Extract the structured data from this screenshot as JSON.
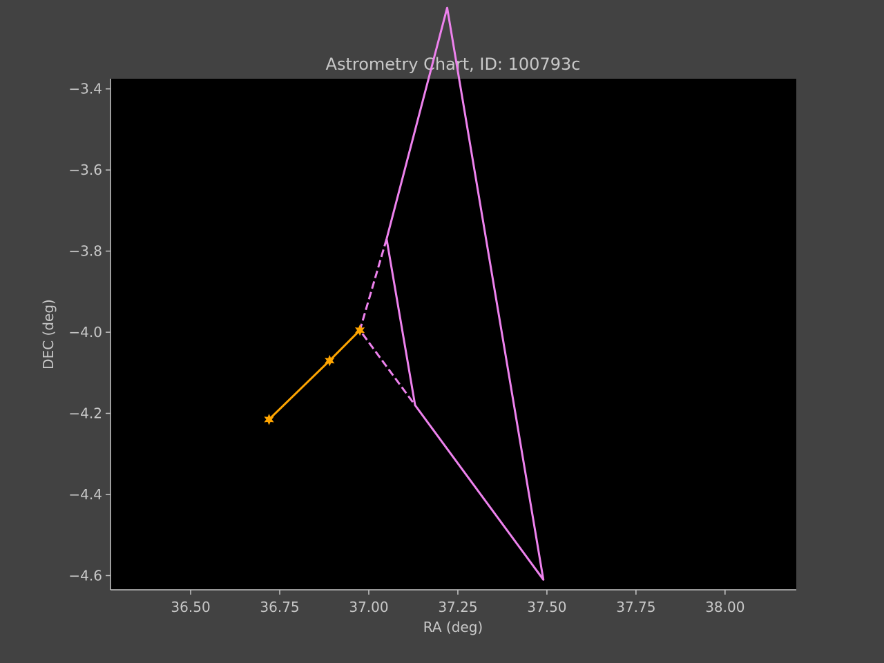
{
  "chart_data": {
    "type": "line",
    "title": "Astrometry Chart, ID: 100793c",
    "xlabel": "RA (deg)",
    "ylabel": "DEC (deg)",
    "xlim": [
      36.275,
      38.2
    ],
    "ylim": [
      -4.635,
      -3.375
    ],
    "xticks": [
      36.5,
      36.75,
      37.0,
      37.25,
      37.5,
      37.75,
      38.0
    ],
    "xtick_labels": [
      "36.50",
      "36.75",
      "37.00",
      "37.25",
      "37.50",
      "37.75",
      "38.00"
    ],
    "yticks": [
      -3.4,
      -3.6,
      -3.8,
      -4.0,
      -4.2,
      -4.4,
      -4.6
    ],
    "ytick_labels": [
      "−3.4",
      "−3.6",
      "−3.8",
      "−4.0",
      "−4.2",
      "−4.4",
      "−4.6"
    ],
    "grid": false,
    "series": [
      {
        "style": "solid",
        "color": "#ee82ee",
        "marker": "none",
        "x": [
          37.05,
          37.22,
          37.49,
          37.13,
          37.05
        ],
        "y": [
          -3.77,
          -3.2,
          -4.61,
          -4.18,
          -3.77
        ]
      },
      {
        "style": "dashed",
        "color": "#ee82ee",
        "marker": "none",
        "x": [
          37.05,
          36.975,
          37.13
        ],
        "y": [
          -3.77,
          -3.995,
          -4.18
        ]
      },
      {
        "style": "solid",
        "color": "#ffa500",
        "marker": "star",
        "x": [
          36.72,
          36.89,
          36.975
        ],
        "y": [
          -4.215,
          -4.07,
          -3.995
        ]
      }
    ]
  }
}
